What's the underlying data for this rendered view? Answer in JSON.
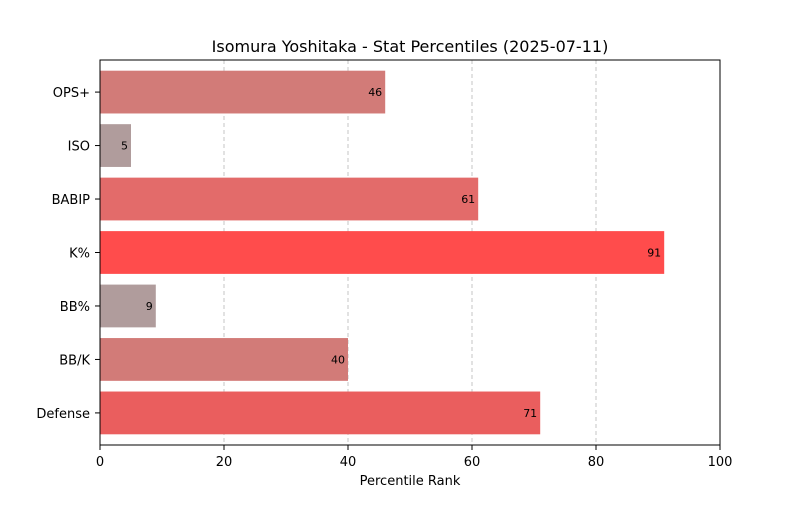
{
  "chart_data": {
    "type": "bar",
    "orientation": "horizontal",
    "title": "Isomura Yoshitaka - Stat Percentiles (2025-07-11)",
    "xlabel": "Percentile Rank",
    "ylabel": "",
    "xlim": [
      0,
      100
    ],
    "xticks": [
      "0",
      "20",
      "40",
      "60",
      "80",
      "100"
    ],
    "grid": "x dashed",
    "categories": [
      "OPS+",
      "ISO",
      "BABIP",
      "K%",
      "BB%",
      "BB/K",
      "Defense"
    ],
    "values": [
      46,
      5,
      61,
      91,
      9,
      40,
      71
    ],
    "data_labels": [
      "46",
      "5",
      "61",
      "91",
      "9",
      "40",
      "71"
    ],
    "colors": [
      "#d27b78",
      "#b09c9c",
      "#e36b6a",
      "#ff4c4c",
      "#b09c9c",
      "#d27b78",
      "#ea5e5e"
    ]
  }
}
